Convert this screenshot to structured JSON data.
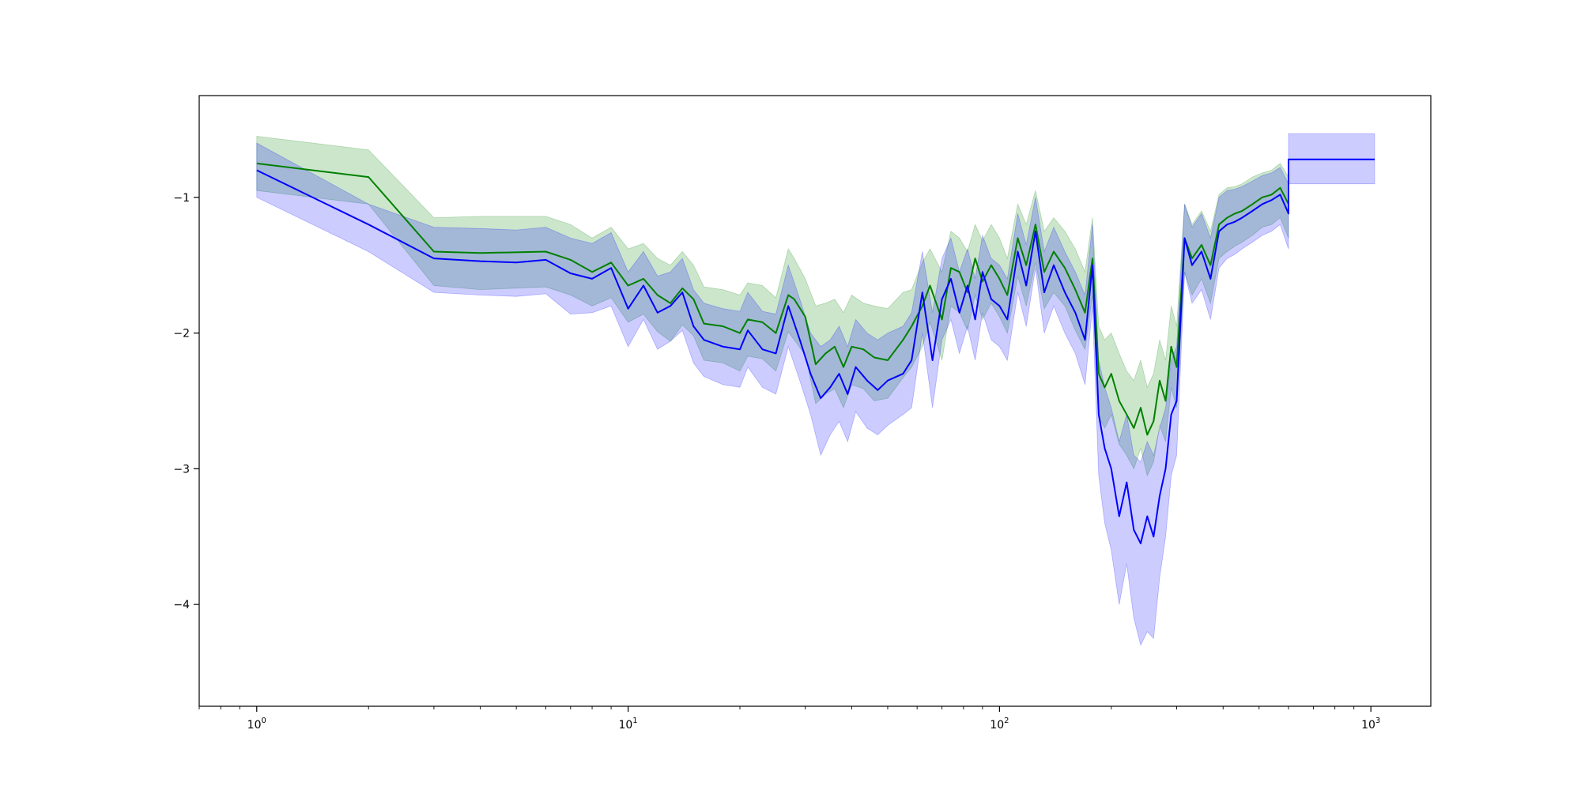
{
  "chart_data": {
    "type": "line",
    "title": "",
    "xlabel": "",
    "ylabel": "",
    "x_scale": "log",
    "xlim": [
      0.7,
      1450
    ],
    "ylim": [
      -4.75,
      -0.25
    ],
    "x_ticks": [
      {
        "value": 1,
        "base": "10",
        "exp": "0"
      },
      {
        "value": 10,
        "base": "10",
        "exp": "1"
      },
      {
        "value": 100,
        "base": "10",
        "exp": "2"
      },
      {
        "value": 1000,
        "base": "10",
        "exp": "3"
      }
    ],
    "y_ticks": [
      {
        "value": -1,
        "label": "−1"
      },
      {
        "value": -2,
        "label": "−2"
      },
      {
        "value": -3,
        "label": "−3"
      },
      {
        "value": -4,
        "label": "−4"
      }
    ],
    "grid": false,
    "legend": "none",
    "series": [
      {
        "color": "#008000",
        "band_color": "#008000",
        "band_opacity": 0.2,
        "points": [
          [
            1,
            -0.75,
            -0.55,
            -0.95
          ],
          [
            2,
            -0.85,
            -0.65,
            -1.05
          ],
          [
            3,
            -1.4,
            -1.15,
            -1.65
          ],
          [
            4,
            -1.41,
            -1.14,
            -1.68
          ],
          [
            6,
            -1.4,
            -1.14,
            -1.66
          ],
          [
            7,
            -1.46,
            -1.2,
            -1.72
          ],
          [
            8,
            -1.55,
            -1.3,
            -1.8
          ],
          [
            9,
            -1.48,
            -1.22,
            -1.74
          ],
          [
            10,
            -1.65,
            -1.38,
            -1.92
          ],
          [
            11,
            -1.6,
            -1.34,
            -1.86
          ],
          [
            12,
            -1.72,
            -1.45,
            -1.99
          ],
          [
            13,
            -1.78,
            -1.5,
            -2.06
          ],
          [
            14,
            -1.67,
            -1.4,
            -1.94
          ],
          [
            15,
            -1.75,
            -1.5,
            -2.02
          ],
          [
            16,
            -1.93,
            -1.66,
            -2.2
          ],
          [
            18,
            -1.95,
            -1.68,
            -2.22
          ],
          [
            20,
            -2.0,
            -1.72,
            -2.28
          ],
          [
            21,
            -1.9,
            -1.63,
            -2.17
          ],
          [
            23,
            -1.92,
            -1.65,
            -2.19
          ],
          [
            25,
            -2.0,
            -1.74,
            -2.28
          ],
          [
            27,
            -1.72,
            -1.38,
            -1.99
          ],
          [
            28,
            -1.75,
            -1.45,
            -2.05
          ],
          [
            30,
            -1.88,
            -1.6,
            -2.16
          ],
          [
            32,
            -2.23,
            -1.8,
            -2.52
          ],
          [
            34,
            -2.15,
            -1.78,
            -2.45
          ],
          [
            36,
            -2.1,
            -1.75,
            -2.41
          ],
          [
            38,
            -2.25,
            -1.85,
            -2.55
          ],
          [
            40,
            -2.1,
            -1.72,
            -2.38
          ],
          [
            43,
            -2.12,
            -1.78,
            -2.41
          ],
          [
            46,
            -2.18,
            -1.8,
            -2.5
          ],
          [
            50,
            -2.2,
            -1.82,
            -2.48
          ],
          [
            55,
            -2.05,
            -1.7,
            -2.33
          ],
          [
            58,
            -1.95,
            -1.68,
            -2.25
          ],
          [
            62,
            -1.8,
            -1.48,
            -2.1
          ],
          [
            65,
            -1.65,
            -1.38,
            -1.92
          ],
          [
            70,
            -1.9,
            -1.55,
            -2.2
          ],
          [
            74,
            -1.52,
            -1.25,
            -1.8
          ],
          [
            78,
            -1.55,
            -1.3,
            -1.85
          ],
          [
            82,
            -1.7,
            -1.4,
            -1.98
          ],
          [
            86,
            -1.45,
            -1.2,
            -1.72
          ],
          [
            90,
            -1.62,
            -1.32,
            -1.9
          ],
          [
            95,
            -1.5,
            -1.2,
            -1.78
          ],
          [
            100,
            -1.6,
            -1.3,
            -1.88
          ],
          [
            105,
            -1.72,
            -1.45,
            -2.0
          ],
          [
            112,
            -1.3,
            -1.05,
            -1.58
          ],
          [
            118,
            -1.5,
            -1.2,
            -1.8
          ],
          [
            125,
            -1.2,
            -0.95,
            -1.48
          ],
          [
            132,
            -1.55,
            -1.25,
            -1.82
          ],
          [
            140,
            -1.4,
            -1.15,
            -1.7
          ],
          [
            150,
            -1.52,
            -1.25,
            -1.8
          ],
          [
            160,
            -1.68,
            -1.38,
            -1.98
          ],
          [
            170,
            -1.85,
            -1.55,
            -2.12
          ],
          [
            178,
            -1.45,
            -1.15,
            -1.72
          ],
          [
            185,
            -2.3,
            -1.95,
            -2.62
          ],
          [
            192,
            -2.4,
            -2.05,
            -2.7
          ],
          [
            200,
            -2.3,
            -2.0,
            -2.6
          ],
          [
            210,
            -2.5,
            -2.15,
            -2.82
          ],
          [
            220,
            -2.6,
            -2.28,
            -2.9
          ],
          [
            230,
            -2.7,
            -2.35,
            -3.0
          ],
          [
            240,
            -2.55,
            -2.2,
            -2.85
          ],
          [
            250,
            -2.75,
            -2.4,
            -3.05
          ],
          [
            260,
            -2.65,
            -2.3,
            -2.95
          ],
          [
            270,
            -2.35,
            -2.05,
            -2.68
          ],
          [
            280,
            -2.5,
            -2.2,
            -2.8
          ],
          [
            290,
            -2.1,
            -1.8,
            -2.4
          ],
          [
            300,
            -2.25,
            -1.95,
            -2.55
          ],
          [
            315,
            -1.3,
            -1.05,
            -1.55
          ],
          [
            330,
            -1.45,
            -1.2,
            -1.72
          ],
          [
            350,
            -1.35,
            -1.1,
            -1.6
          ],
          [
            370,
            -1.5,
            -1.25,
            -1.78
          ],
          [
            390,
            -1.2,
            -0.98,
            -1.45
          ],
          [
            410,
            -1.15,
            -0.93,
            -1.4
          ],
          [
            430,
            -1.12,
            -0.92,
            -1.36
          ],
          [
            450,
            -1.1,
            -0.9,
            -1.33
          ],
          [
            480,
            -1.05,
            -0.85,
            -1.28
          ],
          [
            510,
            -1.0,
            -0.82,
            -1.22
          ],
          [
            540,
            -0.98,
            -0.8,
            -1.2
          ],
          [
            570,
            -0.93,
            -0.75,
            -1.15
          ],
          [
            600,
            -1.05,
            -0.85,
            -1.3
          ]
        ]
      },
      {
        "color": "#0000ff",
        "band_color": "#0000ff",
        "band_opacity": 0.2,
        "points": [
          [
            1,
            -0.8,
            -0.6,
            -1.0
          ],
          [
            2,
            -1.2,
            -1.05,
            -1.4
          ],
          [
            3,
            -1.45,
            -1.22,
            -1.7
          ],
          [
            4,
            -1.47,
            -1.23,
            -1.72
          ],
          [
            5,
            -1.48,
            -1.24,
            -1.73
          ],
          [
            6,
            -1.46,
            -1.22,
            -1.71
          ],
          [
            7,
            -1.56,
            -1.3,
            -1.86
          ],
          [
            8,
            -1.6,
            -1.34,
            -1.85
          ],
          [
            9,
            -1.52,
            -1.26,
            -1.8
          ],
          [
            10,
            -1.82,
            -1.55,
            -2.1
          ],
          [
            11,
            -1.65,
            -1.4,
            -1.9
          ],
          [
            12,
            -1.85,
            -1.58,
            -2.12
          ],
          [
            13,
            -1.8,
            -1.55,
            -2.06
          ],
          [
            14,
            -1.7,
            -1.45,
            -1.98
          ],
          [
            15,
            -1.95,
            -1.68,
            -2.22
          ],
          [
            16,
            -2.05,
            -1.78,
            -2.32
          ],
          [
            18,
            -2.1,
            -1.82,
            -2.38
          ],
          [
            20,
            -2.12,
            -1.84,
            -2.4
          ],
          [
            21,
            -1.98,
            -1.7,
            -2.25
          ],
          [
            23,
            -2.12,
            -1.84,
            -2.4
          ],
          [
            25,
            -2.15,
            -1.86,
            -2.45
          ],
          [
            27,
            -1.8,
            -1.5,
            -2.1
          ],
          [
            29,
            -2.05,
            -1.75,
            -2.35
          ],
          [
            31,
            -2.3,
            -2.0,
            -2.6
          ],
          [
            33,
            -2.48,
            -2.1,
            -2.9
          ],
          [
            35,
            -2.4,
            -2.05,
            -2.75
          ],
          [
            37,
            -2.3,
            -1.95,
            -2.65
          ],
          [
            39,
            -2.45,
            -2.1,
            -2.8
          ],
          [
            41,
            -2.25,
            -1.9,
            -2.58
          ],
          [
            44,
            -2.35,
            -2.0,
            -2.7
          ],
          [
            47,
            -2.42,
            -2.05,
            -2.75
          ],
          [
            50,
            -2.35,
            -2.0,
            -2.68
          ],
          [
            55,
            -2.3,
            -1.95,
            -2.6
          ],
          [
            58,
            -2.2,
            -1.85,
            -2.55
          ],
          [
            62,
            -1.7,
            -1.4,
            -2.0
          ],
          [
            66,
            -2.2,
            -1.85,
            -2.55
          ],
          [
            70,
            -1.75,
            -1.45,
            -2.05
          ],
          [
            74,
            -1.6,
            -1.3,
            -1.9
          ],
          [
            78,
            -1.85,
            -1.55,
            -2.15
          ],
          [
            82,
            -1.65,
            -1.38,
            -1.95
          ],
          [
            86,
            -1.9,
            -1.6,
            -2.2
          ],
          [
            90,
            -1.55,
            -1.28,
            -1.85
          ],
          [
            95,
            -1.75,
            -1.45,
            -2.05
          ],
          [
            100,
            -1.8,
            -1.5,
            -2.1
          ],
          [
            105,
            -1.9,
            -1.6,
            -2.2
          ],
          [
            112,
            -1.4,
            -1.12,
            -1.7
          ],
          [
            118,
            -1.65,
            -1.35,
            -1.95
          ],
          [
            125,
            -1.25,
            -1.0,
            -1.52
          ],
          [
            132,
            -1.7,
            -1.4,
            -2.0
          ],
          [
            140,
            -1.5,
            -1.22,
            -1.8
          ],
          [
            150,
            -1.7,
            -1.4,
            -2.0
          ],
          [
            160,
            -1.85,
            -1.55,
            -2.15
          ],
          [
            170,
            -2.05,
            -1.72,
            -2.38
          ],
          [
            178,
            -1.5,
            -1.2,
            -1.8
          ],
          [
            185,
            -2.6,
            -2.2,
            -3.05
          ],
          [
            192,
            -2.85,
            -2.4,
            -3.4
          ],
          [
            200,
            -3.0,
            -2.55,
            -3.6
          ],
          [
            210,
            -3.35,
            -2.8,
            -4.0
          ],
          [
            220,
            -3.1,
            -2.6,
            -3.7
          ],
          [
            230,
            -3.45,
            -2.9,
            -4.1
          ],
          [
            240,
            -3.55,
            -2.95,
            -4.3
          ],
          [
            250,
            -3.35,
            -2.8,
            -4.2
          ],
          [
            260,
            -3.5,
            -2.9,
            -4.25
          ],
          [
            270,
            -3.2,
            -2.7,
            -3.8
          ],
          [
            280,
            -3.0,
            -2.55,
            -3.5
          ],
          [
            290,
            -2.6,
            -2.2,
            -3.05
          ],
          [
            300,
            -2.5,
            -2.1,
            -2.9
          ],
          [
            315,
            -1.3,
            -1.05,
            -1.55
          ],
          [
            330,
            -1.5,
            -1.22,
            -1.78
          ],
          [
            350,
            -1.4,
            -1.12,
            -1.68
          ],
          [
            370,
            -1.6,
            -1.3,
            -1.9
          ],
          [
            390,
            -1.25,
            -1.0,
            -1.52
          ],
          [
            410,
            -1.2,
            -0.95,
            -1.45
          ],
          [
            430,
            -1.18,
            -0.94,
            -1.42
          ],
          [
            450,
            -1.15,
            -0.92,
            -1.38
          ],
          [
            480,
            -1.1,
            -0.88,
            -1.33
          ],
          [
            510,
            -1.05,
            -0.84,
            -1.28
          ],
          [
            540,
            -1.02,
            -0.82,
            -1.25
          ],
          [
            570,
            -0.98,
            -0.78,
            -1.2
          ],
          [
            600,
            -1.12,
            -0.9,
            -1.38
          ],
          [
            600,
            -0.72,
            -0.53,
            -0.9
          ],
          [
            700,
            -0.72,
            -0.53,
            -0.9
          ],
          [
            800,
            -0.72,
            -0.53,
            -0.9
          ],
          [
            900,
            -0.72,
            -0.53,
            -0.9
          ],
          [
            1024,
            -0.72,
            -0.53,
            -0.9
          ]
        ]
      }
    ]
  }
}
